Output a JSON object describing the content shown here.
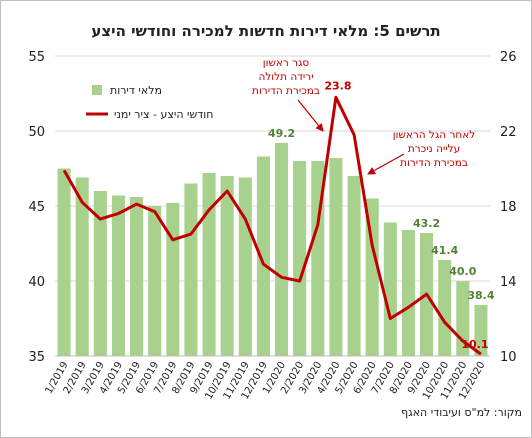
{
  "title": "תרשים 5: מלאי דירות חדשות למכירה וחודשי היצע",
  "source": "מקור: למ\"ס ועיבודי האגף",
  "chart_data": {
    "type": "bar+line",
    "categories": [
      "1/2019",
      "2/2019",
      "3/2019",
      "4/2019",
      "5/2019",
      "6/2019",
      "7/2019",
      "8/2019",
      "9/2019",
      "10/2019",
      "11/2019",
      "12/2019",
      "1/2020",
      "2/2020",
      "3/2020",
      "4/2020",
      "5/2020",
      "6/2020",
      "7/2020",
      "8/2020",
      "9/2020",
      "10/2020",
      "11/2020",
      "12/2020"
    ],
    "series": [
      {
        "name": "מלאי דירות",
        "type": "bar",
        "axis": "left",
        "color": "#a9d18e",
        "values": [
          47.5,
          46.9,
          46.0,
          45.7,
          45.6,
          45.0,
          45.2,
          46.5,
          47.2,
          47.0,
          46.9,
          48.3,
          49.2,
          48.0,
          48.0,
          48.2,
          47.0,
          45.5,
          43.9,
          43.4,
          43.2,
          41.4,
          40.0,
          38.4
        ],
        "labels": [
          {
            "index": 12,
            "text": "49.2"
          },
          {
            "index": 20,
            "text": "43.2"
          },
          {
            "index": 21,
            "text": "41.4"
          },
          {
            "index": 22,
            "text": "40.0"
          },
          {
            "index": 23,
            "text": "38.4"
          }
        ]
      },
      {
        "name": "חודשי היצע - ציר ימני",
        "type": "line",
        "axis": "right",
        "color": "#c00000",
        "values": [
          19.9,
          18.2,
          17.3,
          17.6,
          18.1,
          17.7,
          16.2,
          16.5,
          17.8,
          18.8,
          17.3,
          14.9,
          14.2,
          14.0,
          17.0,
          23.8,
          21.8,
          15.9,
          12.0,
          12.6,
          13.3,
          11.8,
          10.8,
          10.1
        ],
        "labels": [
          {
            "index": 15,
            "text": "23.8"
          },
          {
            "index": 23,
            "text": "10.1"
          }
        ]
      }
    ],
    "y_left": {
      "ylim": [
        35,
        55
      ],
      "ticks": [
        35,
        40,
        45,
        50,
        55
      ]
    },
    "y_right": {
      "ylim": [
        10,
        26
      ],
      "ticks": [
        10,
        14,
        18,
        22,
        26
      ]
    },
    "legend_position": "top-left",
    "annotations": [
      {
        "lines": [
          "סגר ראשון",
          "ירידה תלולה",
          "במכירת הדירות"
        ],
        "target_index": 15
      },
      {
        "lines": [
          "לאחר הגל הראשון",
          "עלייה ניכרת",
          "במכירת הדירות"
        ],
        "target_index": 17
      }
    ]
  }
}
